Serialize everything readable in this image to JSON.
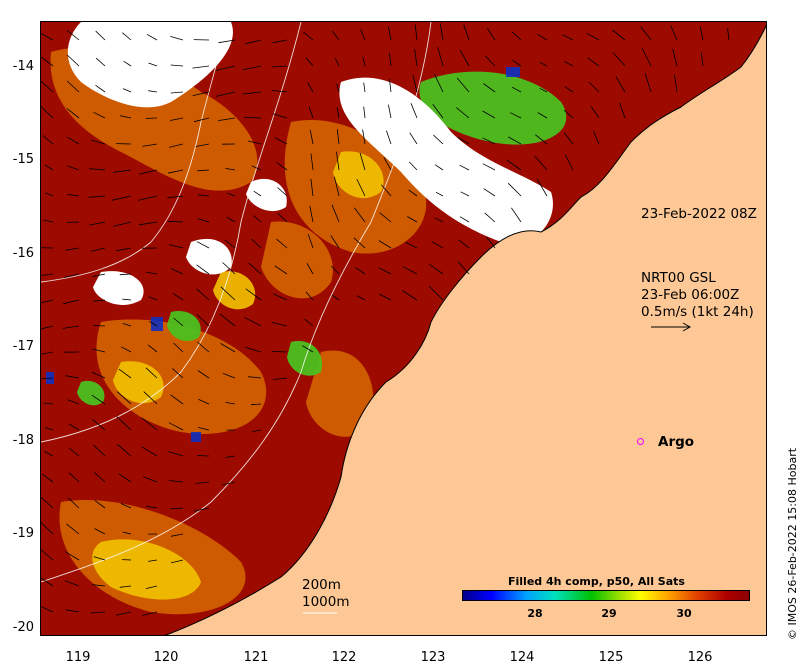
{
  "map": {
    "y_ticks": [
      "-14",
      "-15",
      "-16",
      "-17",
      "-18",
      "-19",
      "-20"
    ],
    "x_ticks": [
      "119",
      "120",
      "121",
      "122",
      "123",
      "124",
      "125",
      "126"
    ],
    "date_label": "23-Feb-2022 08Z",
    "current_label": {
      "line1": "NRT00 GSL",
      "line2": "23-Feb 06:00Z",
      "line3": "0.5m/s (1kt 24h)"
    },
    "contour_legend": {
      "line1": "200m",
      "line2": "1000m"
    },
    "argo_label": "Argo",
    "credit": "© IMOS 26-Feb-2022 15:08 Hobart"
  },
  "colorbar": {
    "title": "Filled 4h comp, p50, All Sats",
    "ticks": [
      "28",
      "29",
      "30"
    ]
  },
  "colors": {
    "land": "#fdc896",
    "sst_warm": "#8b0000",
    "argo_marker": "#ff00ff"
  }
}
